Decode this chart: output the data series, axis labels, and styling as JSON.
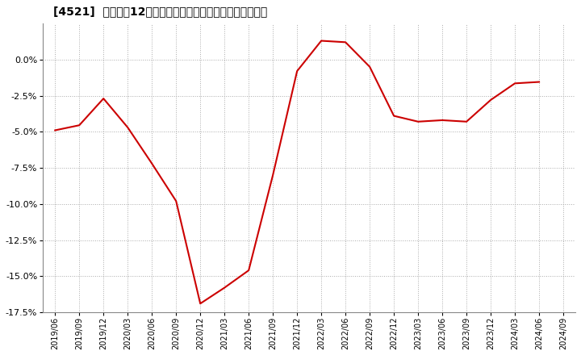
{
  "title": "[4521]  売上高の12か月移動合計の対前年同期増減率の推移",
  "line_color": "#cc0000",
  "background_color": "#ffffff",
  "plot_bg_color": "#ffffff",
  "grid_color": "#aaaaaa",
  "x_labels": [
    "2019/06",
    "2019/09",
    "2019/12",
    "2020/03",
    "2020/06",
    "2020/09",
    "2020/12",
    "2021/03",
    "2021/06",
    "2021/09",
    "2021/12",
    "2022/03",
    "2022/06",
    "2022/09",
    "2022/12",
    "2023/03",
    "2023/06",
    "2023/09",
    "2023/12",
    "2024/03",
    "2024/06",
    "2024/09"
  ],
  "values": [
    -0.049,
    -0.0455,
    -0.027,
    -0.047,
    -0.072,
    -0.098,
    -0.169,
    -0.158,
    -0.146,
    -0.08,
    -0.008,
    0.013,
    0.012,
    -0.005,
    -0.039,
    -0.043,
    -0.042,
    -0.043,
    -0.028,
    -0.0165,
    -0.0155,
    null
  ],
  "ylim": [
    -0.175,
    0.025
  ],
  "yticks": [
    0.0,
    -0.025,
    -0.05,
    -0.075,
    -0.1,
    -0.125,
    -0.15,
    -0.175
  ]
}
